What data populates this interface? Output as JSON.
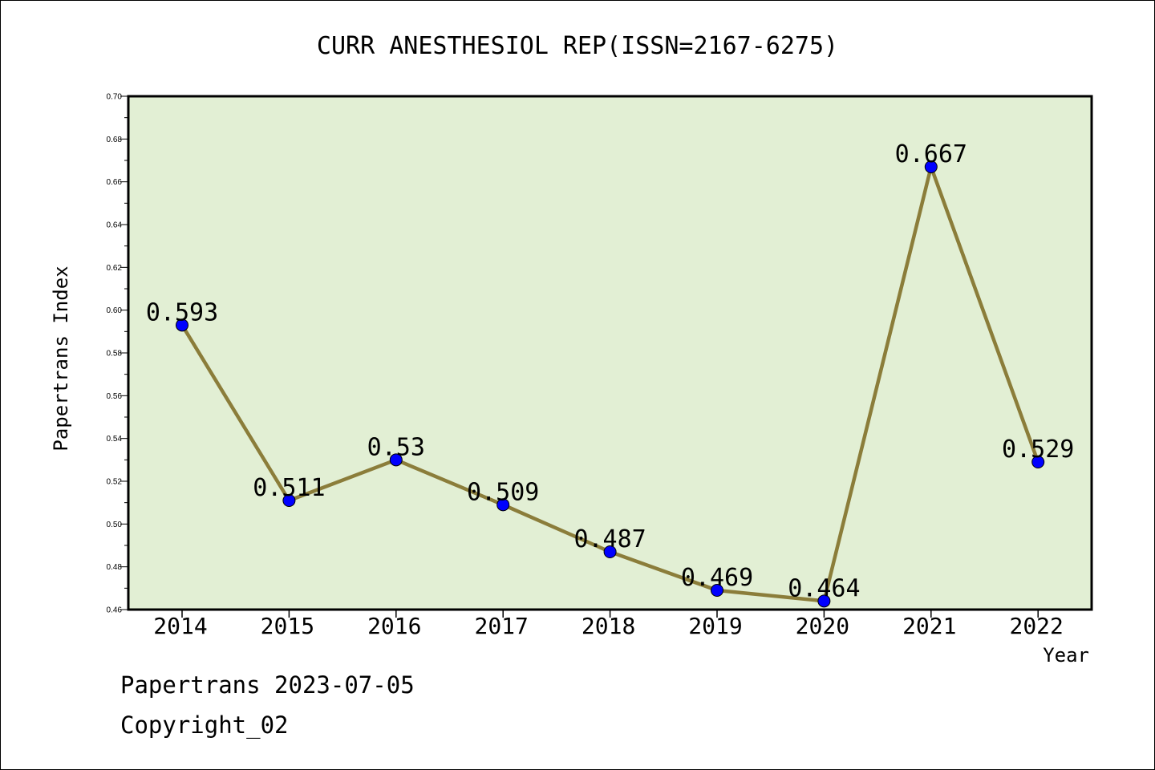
{
  "chart_data": {
    "type": "line",
    "title": "CURR ANESTHESIOL REP(ISSN=2167-6275)",
    "xlabel": "Year",
    "ylabel": "Papertrans Index",
    "categories": [
      "2014",
      "2015",
      "2016",
      "2017",
      "2018",
      "2019",
      "2020",
      "2021",
      "2022"
    ],
    "values": [
      0.593,
      0.511,
      0.53,
      0.509,
      0.487,
      0.469,
      0.464,
      0.667,
      0.529
    ],
    "data_labels": [
      "0.593",
      "0.511",
      "0.53",
      "0.509",
      "0.487",
      "0.469",
      "0.464",
      "0.667",
      "0.529"
    ],
    "ylim": [
      0.46,
      0.7
    ],
    "yticks": [
      "0.46",
      "0.48",
      "0.50",
      "0.52",
      "0.54",
      "0.56",
      "0.58",
      "0.60",
      "0.62",
      "0.64",
      "0.66",
      "0.68",
      "0.70"
    ],
    "grid": false,
    "colors": {
      "plot_background": "#e2efd4",
      "line": "#8b7d3a",
      "marker": "#0000ff"
    }
  },
  "footer": {
    "line1": "Papertrans 2023-07-05",
    "line2": "Copyright_02"
  }
}
